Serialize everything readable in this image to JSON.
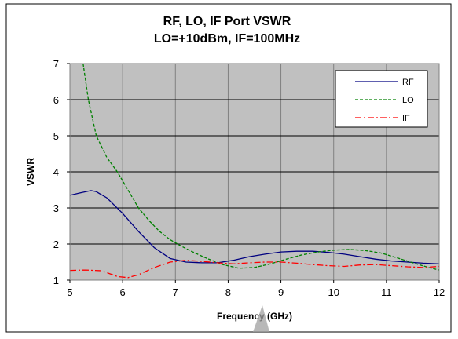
{
  "chart_data": {
    "type": "line",
    "title": "RF, LO, IF Port VSWR",
    "subtitle": "LO=+10dBm, IF=100MHz",
    "xlabel": "Frequency (GHz)",
    "ylabel": "VSWR",
    "xlim": [
      5,
      12
    ],
    "ylim": [
      1,
      7
    ],
    "x_ticks": [
      "5",
      "6",
      "7",
      "8",
      "9",
      "10",
      "11",
      "12"
    ],
    "y_ticks": [
      "1",
      "2",
      "3",
      "4",
      "5",
      "6",
      "7"
    ],
    "grid": true,
    "plot_background": "#c0c0c0",
    "legend_position": "top-right",
    "series": [
      {
        "name": "RF",
        "color": "#000080",
        "style": "solid",
        "x": [
          5.0,
          5.2,
          5.4,
          5.5,
          5.7,
          6.0,
          6.3,
          6.6,
          6.9,
          7.2,
          7.5,
          7.8,
          8.1,
          8.4,
          8.7,
          9.0,
          9.3,
          9.6,
          9.9,
          10.2,
          10.5,
          10.8,
          11.1,
          11.4,
          11.7,
          12.0
        ],
        "y": [
          3.35,
          3.42,
          3.48,
          3.45,
          3.28,
          2.85,
          2.35,
          1.9,
          1.6,
          1.5,
          1.48,
          1.48,
          1.55,
          1.65,
          1.72,
          1.78,
          1.8,
          1.8,
          1.77,
          1.72,
          1.65,
          1.58,
          1.53,
          1.5,
          1.47,
          1.45
        ]
      },
      {
        "name": "LO",
        "color": "#008000",
        "style": "dashed",
        "x": [
          5.25,
          5.35,
          5.5,
          5.7,
          5.9,
          6.1,
          6.3,
          6.5,
          6.7,
          6.9,
          7.1,
          7.3,
          7.6,
          7.9,
          8.2,
          8.5,
          8.8,
          9.1,
          9.4,
          9.7,
          10.0,
          10.3,
          10.6,
          10.9,
          11.2,
          11.5,
          11.8,
          12.0
        ],
        "y": [
          7.0,
          6.0,
          5.0,
          4.4,
          4.0,
          3.5,
          3.0,
          2.65,
          2.35,
          2.12,
          1.95,
          1.8,
          1.6,
          1.43,
          1.33,
          1.35,
          1.45,
          1.58,
          1.7,
          1.78,
          1.83,
          1.85,
          1.82,
          1.75,
          1.62,
          1.48,
          1.35,
          1.28
        ]
      },
      {
        "name": "IF",
        "color": "#ff0000",
        "style": "dashdot",
        "x": [
          5.0,
          5.3,
          5.6,
          5.9,
          6.1,
          6.3,
          6.6,
          6.9,
          7.2,
          7.5,
          7.8,
          8.1,
          8.4,
          8.7,
          9.0,
          9.3,
          9.6,
          9.9,
          10.2,
          10.5,
          10.8,
          11.1,
          11.4,
          11.7,
          12.0
        ],
        "y": [
          1.27,
          1.28,
          1.26,
          1.1,
          1.07,
          1.15,
          1.35,
          1.5,
          1.55,
          1.52,
          1.48,
          1.45,
          1.48,
          1.5,
          1.5,
          1.47,
          1.43,
          1.4,
          1.38,
          1.42,
          1.43,
          1.4,
          1.37,
          1.35,
          1.38
        ]
      }
    ]
  }
}
